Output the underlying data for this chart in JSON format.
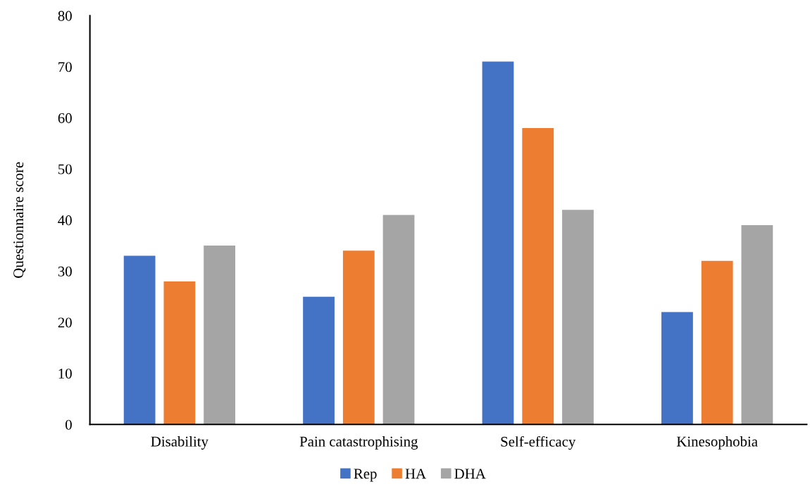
{
  "chart_data": {
    "type": "bar",
    "ylabel": "Questionnaire score",
    "categories": [
      "Disability",
      "Pain catastrophising",
      "Self-efficacy",
      "Kinesophobia"
    ],
    "series": [
      {
        "name": "Rep",
        "color": "#4472c4",
        "values": [
          33,
          25,
          71,
          22
        ]
      },
      {
        "name": "HA",
        "color": "#ed7d31",
        "values": [
          28,
          34,
          58,
          32
        ]
      },
      {
        "name": "DHA",
        "color": "#a5a5a5",
        "values": [
          35,
          41,
          42,
          39
        ]
      }
    ],
    "ylim": [
      0,
      80
    ],
    "yticks": [
      0,
      10,
      20,
      30,
      40,
      50,
      60,
      70,
      80
    ],
    "grid": false,
    "legend": "bottom"
  }
}
